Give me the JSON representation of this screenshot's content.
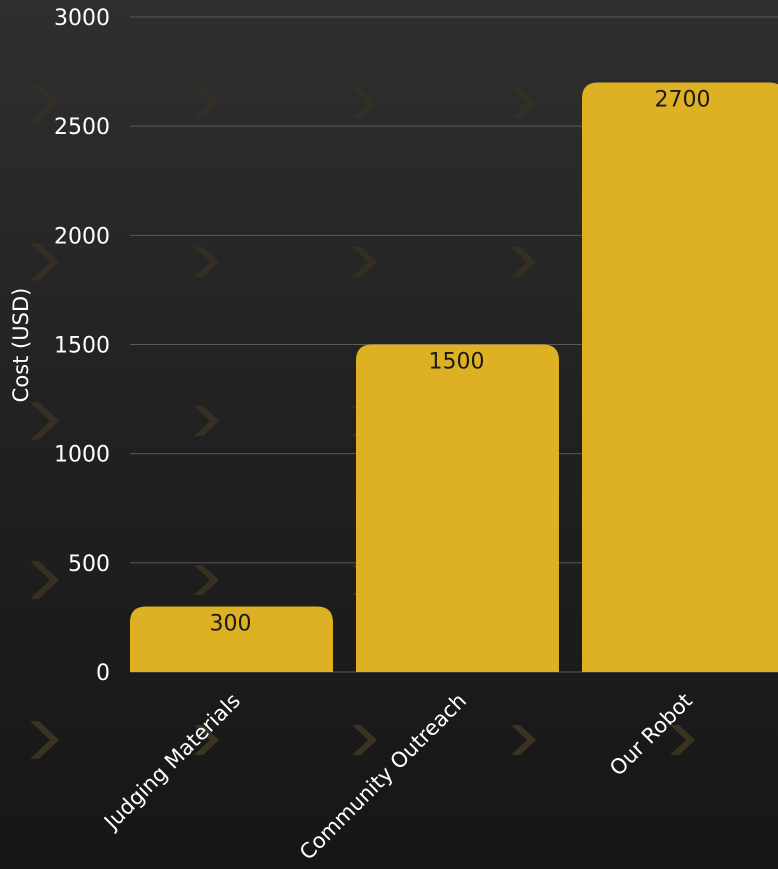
{
  "chart_data": {
    "type": "bar",
    "categories": [
      "Judging Materials",
      "Community Outreach",
      "Our Robot"
    ],
    "values": [
      300,
      1500,
      2700
    ],
    "title": "",
    "xlabel": "",
    "ylabel": "Cost (USD)",
    "ylim": [
      0,
      3000
    ],
    "yticks": [
      0,
      500,
      1000,
      1500,
      2000,
      2500,
      3000
    ],
    "grid": "horizontal",
    "bar_color": "#deb124",
    "value_label_color": "#1a1a1a",
    "background_color": "#222222"
  }
}
